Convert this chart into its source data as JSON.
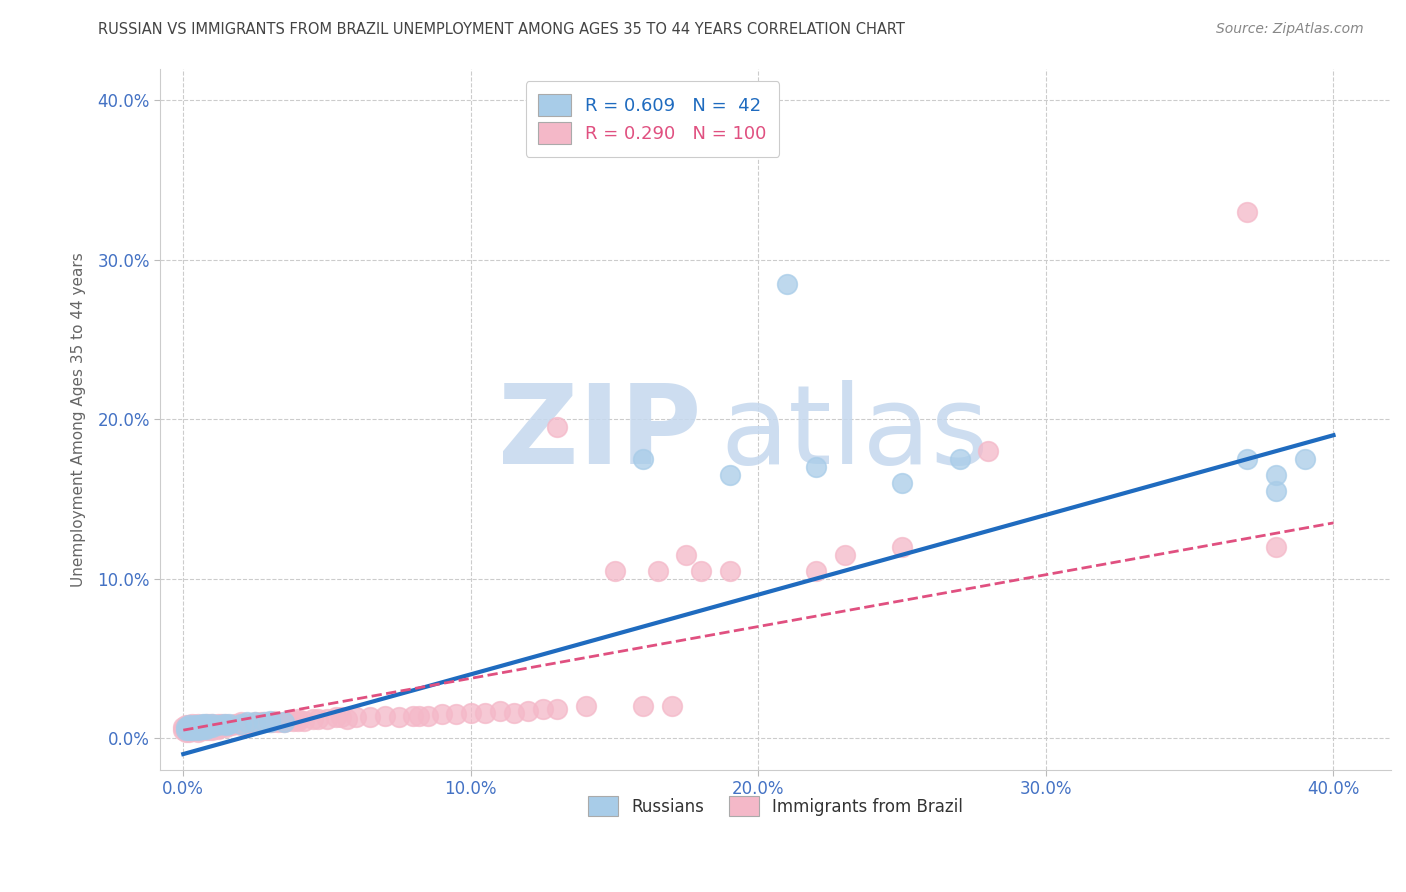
{
  "title": "RUSSIAN VS IMMIGRANTS FROM BRAZIL UNEMPLOYMENT AMONG AGES 35 TO 44 YEARS CORRELATION CHART",
  "source": "Source: ZipAtlas.com",
  "xlabel_ticks": [
    "0.0%",
    "10.0%",
    "20.0%",
    "30.0%",
    "40.0%"
  ],
  "ylabel_ticks": [
    "0.0%",
    "10.0%",
    "20.0%",
    "30.0%",
    "40.0%"
  ],
  "xlabel_vals": [
    0.0,
    0.1,
    0.2,
    0.3,
    0.4
  ],
  "ylabel_vals": [
    0.0,
    0.1,
    0.2,
    0.3,
    0.4
  ],
  "xlim": [
    -0.008,
    0.42
  ],
  "ylim": [
    -0.02,
    0.42
  ],
  "legend_label1": "R = 0.609   N =  42",
  "legend_label2": "R = 0.290   N = 100",
  "legend_series1": "Russians",
  "legend_series2": "Immigrants from Brazil",
  "R1": 0.609,
  "N1": 42,
  "R2": 0.29,
  "N2": 100,
  "color1": "#a8cce8",
  "color2": "#f4b8c8",
  "trend_color1": "#1f6bbf",
  "trend_color2": "#e05080",
  "watermark_zip": "ZIP",
  "watermark_atlas": "atlas",
  "watermark_color": "#d0dff0",
  "grid_color": "#cccccc",
  "title_color": "#444444",
  "axis_label_color": "#4472c4",
  "ylabel": "Unemployment Among Ages 35 to 44 years",
  "trend_line1_x0": 0.0,
  "trend_line1_y0": -0.01,
  "trend_line1_x1": 0.4,
  "trend_line1_y1": 0.19,
  "trend_line2_x0": 0.0,
  "trend_line2_y0": 0.005,
  "trend_line2_x1": 0.4,
  "trend_line2_y1": 0.135,
  "russian_x": [
    0.001,
    0.001,
    0.002,
    0.002,
    0.002,
    0.003,
    0.003,
    0.004,
    0.004,
    0.005,
    0.005,
    0.005,
    0.006,
    0.006,
    0.007,
    0.007,
    0.008,
    0.008,
    0.009,
    0.01,
    0.01,
    0.012,
    0.014,
    0.015,
    0.016,
    0.02,
    0.022,
    0.025,
    0.028,
    0.03,
    0.03,
    0.035,
    0.16,
    0.19,
    0.21,
    0.22,
    0.25,
    0.27,
    0.37,
    0.38,
    0.38,
    0.39
  ],
  "russian_y": [
    0.005,
    0.007,
    0.005,
    0.007,
    0.008,
    0.005,
    0.007,
    0.006,
    0.008,
    0.005,
    0.006,
    0.008,
    0.006,
    0.008,
    0.006,
    0.009,
    0.006,
    0.009,
    0.007,
    0.007,
    0.009,
    0.008,
    0.009,
    0.008,
    0.009,
    0.009,
    0.01,
    0.01,
    0.01,
    0.01,
    0.011,
    0.01,
    0.175,
    0.165,
    0.285,
    0.17,
    0.16,
    0.175,
    0.175,
    0.165,
    0.155,
    0.175
  ],
  "brazil_x": [
    0.0,
    0.0,
    0.001,
    0.001,
    0.001,
    0.002,
    0.002,
    0.002,
    0.003,
    0.003,
    0.003,
    0.004,
    0.004,
    0.004,
    0.005,
    0.005,
    0.005,
    0.005,
    0.006,
    0.006,
    0.006,
    0.007,
    0.007,
    0.007,
    0.008,
    0.008,
    0.008,
    0.009,
    0.009,
    0.009,
    0.01,
    0.01,
    0.01,
    0.011,
    0.012,
    0.012,
    0.013,
    0.013,
    0.014,
    0.015,
    0.015,
    0.016,
    0.017,
    0.018,
    0.019,
    0.02,
    0.02,
    0.022,
    0.023,
    0.025,
    0.025,
    0.027,
    0.028,
    0.03,
    0.031,
    0.032,
    0.033,
    0.035,
    0.036,
    0.038,
    0.04,
    0.04,
    0.042,
    0.045,
    0.047,
    0.05,
    0.053,
    0.055,
    0.057,
    0.06,
    0.065,
    0.07,
    0.075,
    0.08,
    0.082,
    0.085,
    0.09,
    0.095,
    0.1,
    0.105,
    0.11,
    0.115,
    0.12,
    0.125,
    0.13,
    0.13,
    0.14,
    0.15,
    0.16,
    0.165,
    0.17,
    0.175,
    0.18,
    0.19,
    0.22,
    0.23,
    0.25,
    0.28,
    0.37,
    0.38
  ],
  "brazil_y": [
    0.005,
    0.007,
    0.004,
    0.006,
    0.008,
    0.004,
    0.006,
    0.008,
    0.005,
    0.007,
    0.009,
    0.005,
    0.006,
    0.008,
    0.004,
    0.005,
    0.007,
    0.009,
    0.005,
    0.006,
    0.008,
    0.005,
    0.006,
    0.008,
    0.005,
    0.007,
    0.009,
    0.005,
    0.007,
    0.009,
    0.005,
    0.007,
    0.009,
    0.007,
    0.006,
    0.009,
    0.007,
    0.009,
    0.008,
    0.007,
    0.009,
    0.008,
    0.008,
    0.009,
    0.009,
    0.008,
    0.01,
    0.009,
    0.009,
    0.009,
    0.01,
    0.01,
    0.01,
    0.01,
    0.01,
    0.011,
    0.01,
    0.01,
    0.011,
    0.011,
    0.011,
    0.012,
    0.011,
    0.012,
    0.012,
    0.012,
    0.013,
    0.013,
    0.012,
    0.013,
    0.013,
    0.014,
    0.013,
    0.014,
    0.014,
    0.014,
    0.015,
    0.015,
    0.016,
    0.016,
    0.017,
    0.016,
    0.017,
    0.018,
    0.018,
    0.195,
    0.02,
    0.105,
    0.02,
    0.105,
    0.02,
    0.115,
    0.105,
    0.105,
    0.105,
    0.115,
    0.12,
    0.18,
    0.33,
    0.12
  ]
}
